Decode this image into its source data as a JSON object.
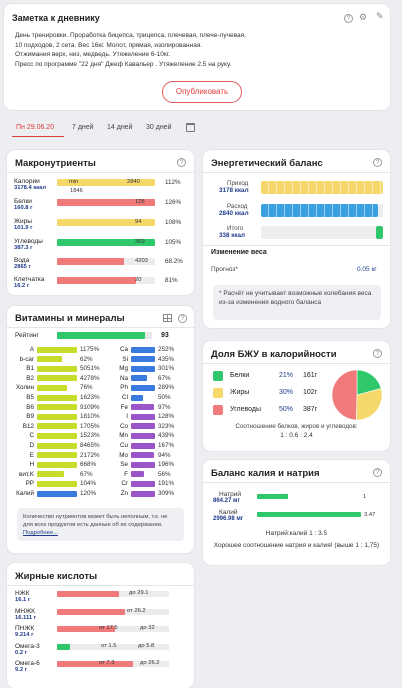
{
  "diary": {
    "title": "Заметка к дневнику",
    "lines": [
      "День тренировки. Проработка бицепса, трицепса, плечевая, плече-лучевая.",
      "10 подходов, 2 сета. Вес 16кг. Молот, прямая, изолированная.",
      "Отжимания верх, низ, медведь. Утяжеление 6-10кг.",
      "Пресс по программе \"22 дня\" Джеф Кавальер . Утяжеление 2.5 на руку."
    ],
    "publish_label": "Опубликовать"
  },
  "periods": [
    "Пн 29.06.20",
    "7 дней",
    "14 дней",
    "30 дней"
  ],
  "macros": {
    "title": "Макронутриенты",
    "rows": [
      {
        "name": "Калории",
        "amount": "3178.4 ккал",
        "value": "2840",
        "min": "min",
        "norm": "1846",
        "pct": "112%",
        "fill": 1.0,
        "color": "#f6d86a"
      },
      {
        "name": "Белки",
        "amount": "160.8 г",
        "value": "128",
        "pct": "126%",
        "fill": 1.0,
        "color": "#f07a7a"
      },
      {
        "name": "Жиры",
        "amount": "101.9 г",
        "value": "94",
        "pct": "108%",
        "fill": 1.0,
        "color": "#f6d86a"
      },
      {
        "name": "Углеводы",
        "amount": "387.3 г",
        "value": "369",
        "pct": "105%",
        "fill": 1.0,
        "color": "#2ec86a"
      },
      {
        "name": "Вода",
        "amount": "2865 г",
        "value": "4203",
        "pct": "68.2%",
        "fill": 0.68,
        "color": "#f07a7a"
      },
      {
        "name": "Клетчатка",
        "amount": "16.2 г",
        "value": "20",
        "pct": "81%",
        "fill": 0.81,
        "color": "#f07a7a"
      }
    ]
  },
  "energy": {
    "title": "Энергетический баланс",
    "rows": [
      {
        "name": "Приход",
        "amount": "3178 ккал",
        "color": "#f6d86a",
        "fill": 1.0
      },
      {
        "name": "Расход",
        "amount": "2840 ккал",
        "color": "#3aa0e0",
        "fill": 0.96
      },
      {
        "name": "Итого",
        "amount": "338 ккал",
        "color": "#2ec86a",
        "fill": 0.06
      }
    ],
    "weight_title": "Изменение веса",
    "forecast_label": "Прогноз*",
    "forecast_value": "0.05 кг",
    "note": "* Расчёт не учитывает возможные колебания веса из-за изменения водного баланса"
  },
  "vitamins": {
    "title": "Витамины и минералы",
    "rating_label": "Рейтинг",
    "rating_value": "93",
    "rating_fill": 0.93,
    "left": [
      {
        "name": "A",
        "pct": "1175%",
        "fill": 1.0,
        "color": "#c7dd2a"
      },
      {
        "name": "b-car",
        "pct": "62%",
        "fill": 0.62,
        "color": "#c7dd2a"
      },
      {
        "name": "B1",
        "pct": "5051%",
        "fill": 1.0,
        "color": "#c7dd2a"
      },
      {
        "name": "B2",
        "pct": "4278%",
        "fill": 1.0,
        "color": "#c7dd2a"
      },
      {
        "name": "Холин",
        "pct": "76%",
        "fill": 0.76,
        "color": "#c7dd2a"
      },
      {
        "name": "B5",
        "pct": "1623%",
        "fill": 1.0,
        "color": "#c7dd2a"
      },
      {
        "name": "B6",
        "pct": "9109%",
        "fill": 1.0,
        "color": "#c7dd2a"
      },
      {
        "name": "B9",
        "pct": "1810%",
        "fill": 1.0,
        "color": "#c7dd2a"
      },
      {
        "name": "B12",
        "pct": "1705%",
        "fill": 1.0,
        "color": "#c7dd2a"
      },
      {
        "name": "C",
        "pct": "1523%",
        "fill": 1.0,
        "color": "#c7dd2a"
      },
      {
        "name": "D",
        "pct": "8465%",
        "fill": 1.0,
        "color": "#c7dd2a"
      },
      {
        "name": "E",
        "pct": "2172%",
        "fill": 1.0,
        "color": "#c7dd2a"
      },
      {
        "name": "H",
        "pct": "668%",
        "fill": 1.0,
        "color": "#c7dd2a"
      },
      {
        "name": "вит.K",
        "pct": "67%",
        "fill": 0.67,
        "color": "#c7dd2a"
      },
      {
        "name": "PP",
        "pct": "104%",
        "fill": 1.0,
        "color": "#c7dd2a"
      },
      {
        "name": "Калий",
        "pct": "120%",
        "fill": 1.0,
        "color": "#3a7be0"
      }
    ],
    "right": [
      {
        "name": "Ca",
        "pct": "252%",
        "fill": 1.0,
        "color": "#3a7be0"
      },
      {
        "name": "Si",
        "pct": "435%",
        "fill": 1.0,
        "color": "#3a7be0"
      },
      {
        "name": "Mg",
        "pct": "301%",
        "fill": 1.0,
        "color": "#3a7be0"
      },
      {
        "name": "Na",
        "pct": "67%",
        "fill": 0.67,
        "color": "#3a7be0"
      },
      {
        "name": "Ph",
        "pct": "289%",
        "fill": 1.0,
        "color": "#3a7be0"
      },
      {
        "name": "Cl",
        "pct": "50%",
        "fill": 0.5,
        "color": "#3a7be0"
      },
      {
        "name": "Fe",
        "pct": "97%",
        "fill": 0.97,
        "color": "#9a55c8"
      },
      {
        "name": "I",
        "pct": "128%",
        "fill": 1.0,
        "color": "#9a55c8"
      },
      {
        "name": "Co",
        "pct": "323%",
        "fill": 1.0,
        "color": "#9a55c8"
      },
      {
        "name": "Mn",
        "pct": "439%",
        "fill": 1.0,
        "color": "#9a55c8"
      },
      {
        "name": "Cu",
        "pct": "167%",
        "fill": 1.0,
        "color": "#9a55c8"
      },
      {
        "name": "Mo",
        "pct": "94%",
        "fill": 0.94,
        "color": "#9a55c8"
      },
      {
        "name": "Se",
        "pct": "196%",
        "fill": 1.0,
        "color": "#9a55c8"
      },
      {
        "name": "F",
        "pct": "56%",
        "fill": 0.56,
        "color": "#9a55c8"
      },
      {
        "name": "Cr",
        "pct": "191%",
        "fill": 1.0,
        "color": "#9a55c8"
      },
      {
        "name": "Zn",
        "pct": "309%",
        "fill": 1.0,
        "color": "#9a55c8"
      }
    ],
    "note": "Количество нутриентов может быть неполным, т.к. не для всех продуктов есть данные об их содержании.",
    "more_label": "Подробнее..."
  },
  "bju": {
    "title": "Доля БЖУ в калорийности",
    "rows": [
      {
        "name": "Белки",
        "pct": "21%",
        "grams": "161г",
        "color": "#2ec86a",
        "share": 0.21
      },
      {
        "name": "Жиры",
        "pct": "30%",
        "grams": "102г",
        "color": "#f6d86a",
        "share": 0.3
      },
      {
        "name": "Углеводы",
        "pct": "50%",
        "grams": "387г",
        "color": "#f07a7a",
        "share": 0.5
      }
    ],
    "ratio_label": "Соотношение белков, жиров и углеводов:",
    "ratio_value": "1 : 0.6 : 2.4"
  },
  "kna": {
    "title": "Баланс калия и натрия",
    "rows": [
      {
        "name": "Натрий",
        "amount": "864.27 мг",
        "value": "1",
        "fill": 0.3
      },
      {
        "name": "Калий",
        "amount": "2996.98 мг",
        "value": "3.47",
        "fill": 1.0
      }
    ],
    "ratio": "Натрий:калий 1 : 3.5",
    "comment": "Хорошее соотношение натрия и калия! (выше 1 : 1,75)"
  },
  "fatty": {
    "title": "Жирные кислоты",
    "rows": [
      {
        "name": "НЖК",
        "amount": "16.1 г",
        "limit": "до 29.1",
        "fill": 0.55
      },
      {
        "name": "МНЖК",
        "amount": "16.111 г",
        "limit": "от 26.2",
        "fill": 0.61
      },
      {
        "name": "ПНЖК",
        "amount": "9.214 г",
        "from": "от 17.5",
        "to": "до 32",
        "fill": 0.52
      },
      {
        "name": "Омега-3",
        "amount": "0.2 г",
        "from": "от 1.5",
        "to": "до 5.8",
        "fill": 0.12
      },
      {
        "name": "Омега-6",
        "amount": "9.2 г",
        "from": "от 7.3",
        "to": "до 26.2",
        "fill": 0.68
      }
    ]
  }
}
